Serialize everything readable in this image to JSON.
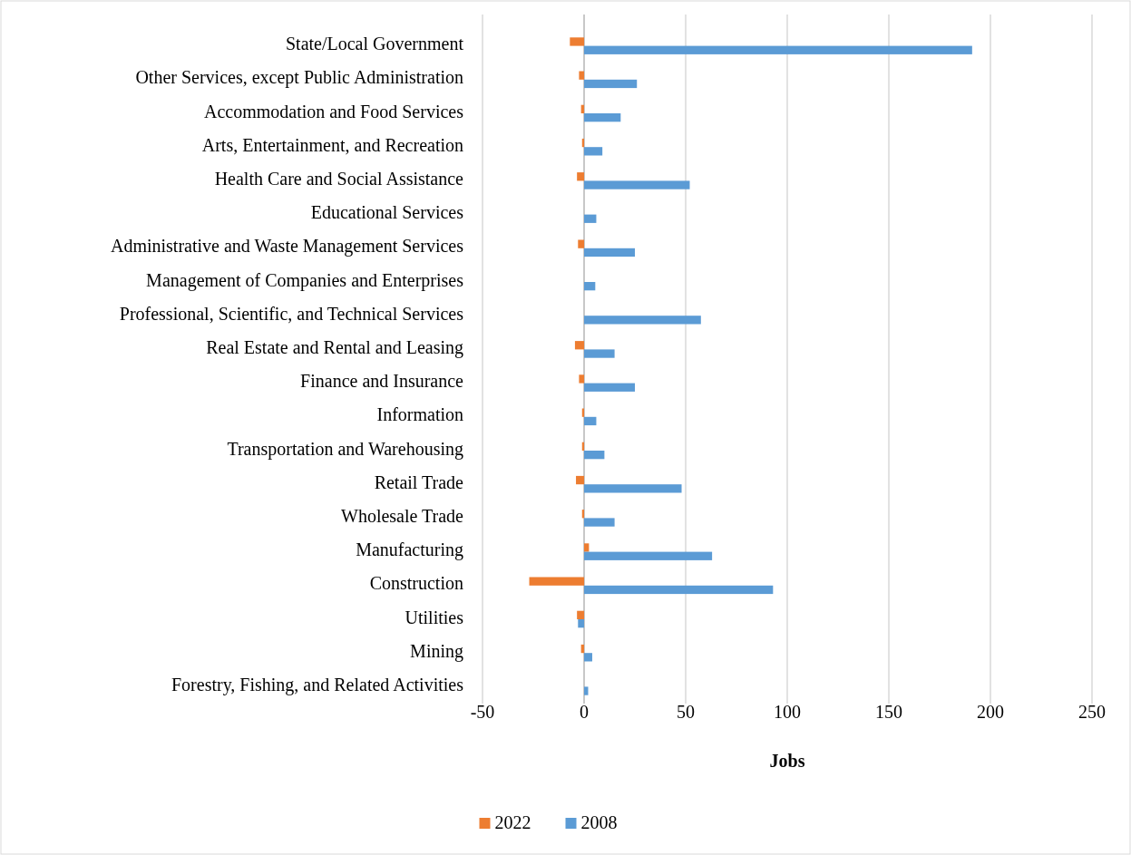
{
  "chart_data": {
    "type": "bar",
    "orientation": "horizontal",
    "xlabel": "Jobs",
    "categories": [
      "State/Local Government",
      "Other Services, except Public Administration",
      "Accommodation and Food Services",
      "Arts, Entertainment, and Recreation",
      "Health Care and Social Assistance",
      "Educational Services",
      "Administrative and Waste Management Services",
      "Management of Companies and Enterprises",
      "Professional, Scientific, and Technical Services",
      "Real Estate and Rental and Leasing",
      "Finance and Insurance",
      "Information",
      "Transportation and Warehousing",
      "Retail Trade",
      "Wholesale Trade",
      "Manufacturing",
      "Construction",
      "Utilities",
      "Mining",
      "Forestry, Fishing, and Related Activities"
    ],
    "series": [
      {
        "name": "2022",
        "color": "#ed7d31",
        "values": [
          -7,
          -2.5,
          -1.5,
          -1,
          -3.5,
          0,
          -3,
          0,
          0,
          -4.5,
          -2.5,
          -1,
          -1,
          -4,
          -1,
          2.4,
          -27,
          -3.5,
          -1.5,
          0
        ]
      },
      {
        "name": "2008",
        "color": "#5b9bd5",
        "values": [
          191,
          26,
          18,
          9,
          52,
          6,
          25,
          5.5,
          57.5,
          15,
          25,
          6,
          10,
          48,
          15,
          63,
          93,
          -3,
          4,
          2
        ]
      }
    ],
    "xlim": [
      -50,
      250
    ],
    "xticks": [
      -50,
      0,
      50,
      100,
      150,
      200,
      250
    ],
    "grid": "x",
    "legend": "bottom"
  }
}
